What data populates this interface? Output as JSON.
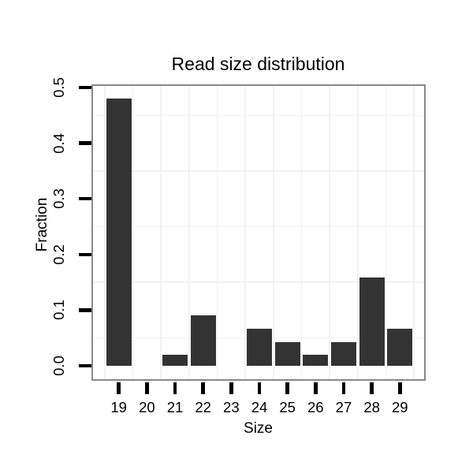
{
  "title": "Read size distribution",
  "chart_data": {
    "type": "bar",
    "title": "Read size distribution",
    "xlabel": "Size",
    "ylabel": "Fraction",
    "categories": [
      19,
      20,
      21,
      22,
      23,
      24,
      25,
      26,
      27,
      28,
      29
    ],
    "values": [
      0.48,
      0,
      0.02,
      0.09,
      0,
      0.066,
      0.043,
      0.02,
      0.043,
      0.158,
      0.066
    ],
    "x_tick_labels": [
      "19",
      "20",
      "21",
      "22",
      "23",
      "24",
      "25",
      "26",
      "27",
      "28",
      "29"
    ],
    "y_tick_values": [
      0.0,
      0.1,
      0.2,
      0.3,
      0.4,
      0.5
    ],
    "y_tick_labels": [
      "0.0",
      "0.1",
      "0.2",
      "0.3",
      "0.4",
      "0.5"
    ],
    "ylim": [
      -0.027,
      0.507
    ],
    "grid": "minor gridlines only (x at half-steps, y at 0.05 offsets), no major gridlines, no legend",
    "y_minor_gridlines": [
      0.05,
      0.15,
      0.25,
      0.35,
      0.45
    ],
    "colors": {
      "bar": "#333333",
      "panel_border": "#898989",
      "gridline": "#f2f2f2",
      "tick": "#000000",
      "text": "#000000",
      "background": "#ffffff"
    }
  }
}
